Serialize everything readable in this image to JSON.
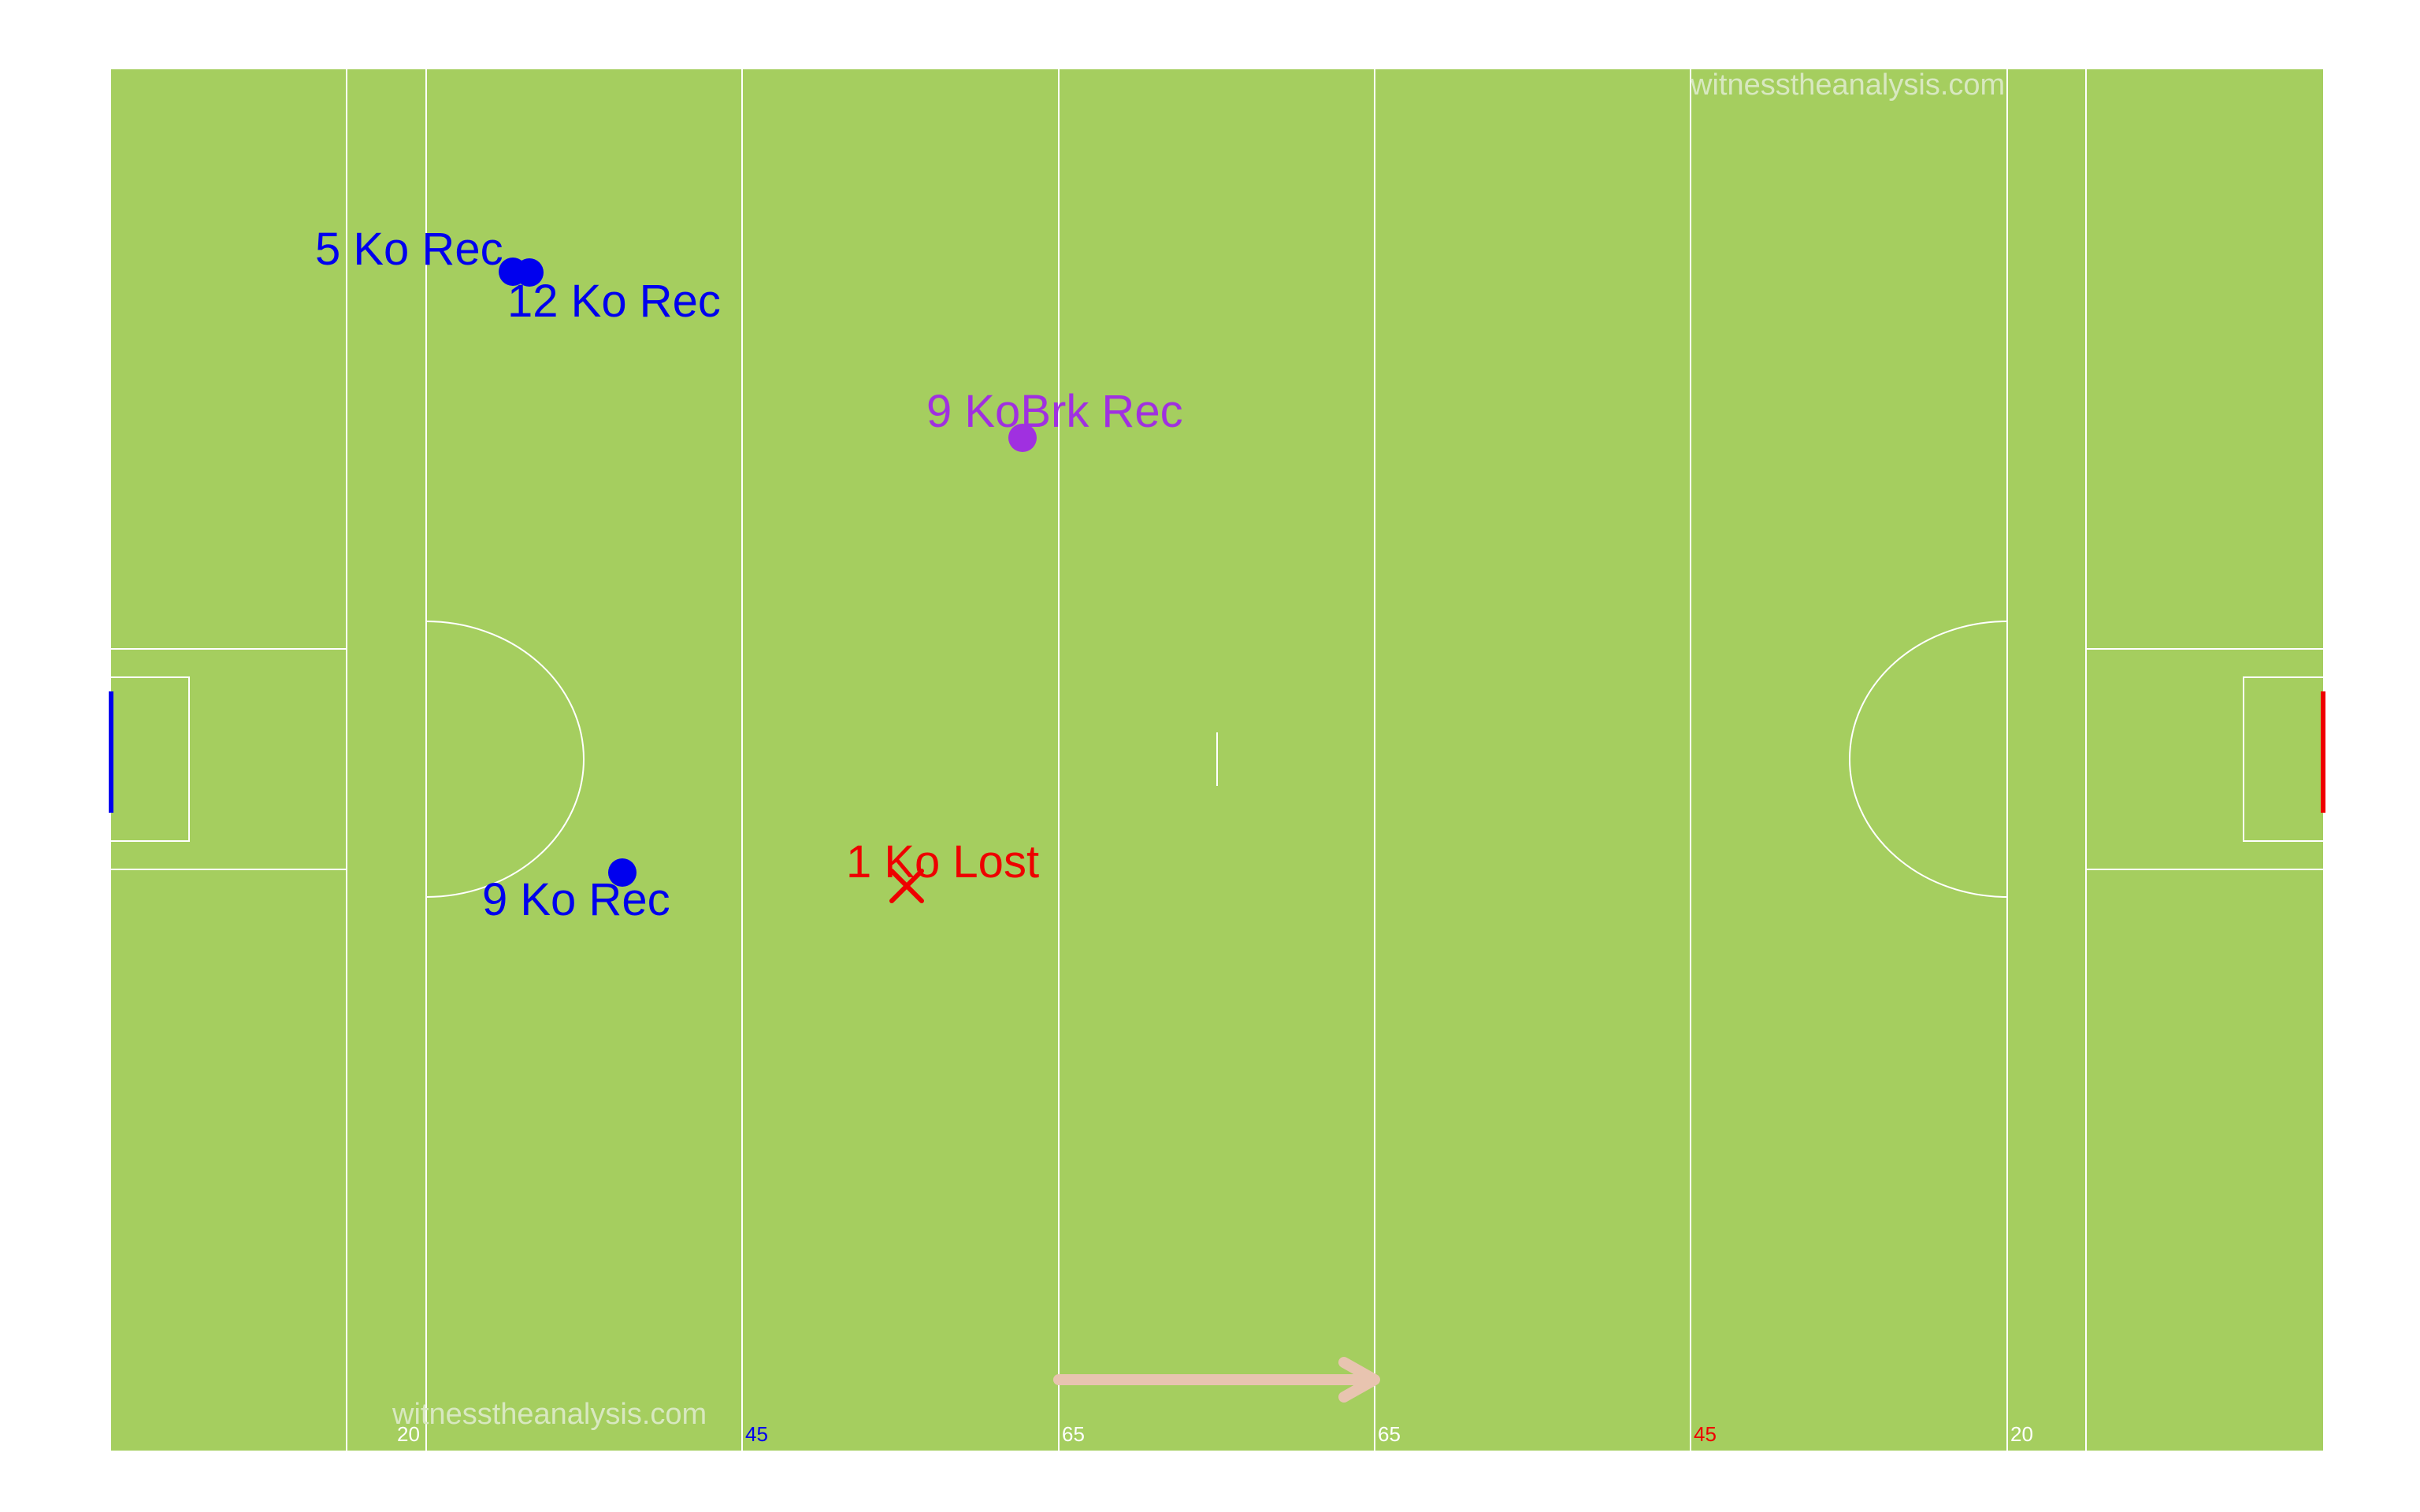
{
  "watermark": {
    "top": "witnesstheanalysis.com",
    "bottom": "witnesstheanalysis.com"
  },
  "colors": {
    "grass": "#a5ce5f",
    "lines": "#ffffff",
    "team_blue": "#0000ee",
    "team_red": "#ee0000",
    "break": "#a030e0",
    "arrow": "#e8c4b0"
  },
  "line_labels": [
    {
      "text": "20",
      "color": "white"
    },
    {
      "text": "45",
      "color": "blue"
    },
    {
      "text": "65",
      "color": "white"
    },
    {
      "text": "65",
      "color": "white"
    },
    {
      "text": "45",
      "color": "red"
    },
    {
      "text": "20",
      "color": "white"
    }
  ],
  "events": [
    {
      "label": "5 Ko Rec",
      "type": "dot",
      "color": "blue"
    },
    {
      "label": "12 Ko Rec",
      "type": "dot",
      "color": "blue"
    },
    {
      "label": "9 KoBrk Rec",
      "type": "dot",
      "color": "purple"
    },
    {
      "label": "9 Ko Rec",
      "type": "dot",
      "color": "blue"
    },
    {
      "label": "1 Ko Lost",
      "type": "cross",
      "color": "red"
    }
  ],
  "direction": "right"
}
